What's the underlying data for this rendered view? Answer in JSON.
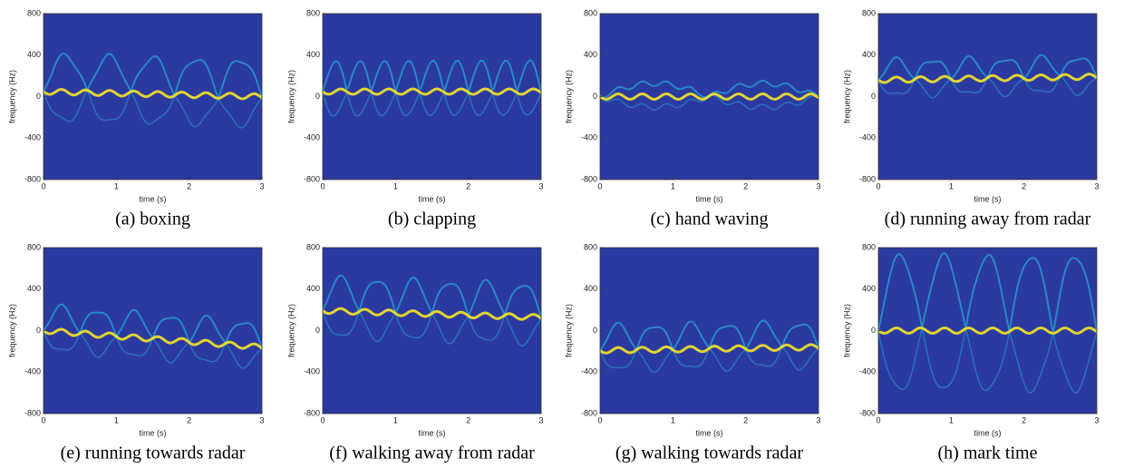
{
  "chart_data": [
    {
      "type": "spectrogram",
      "caption": "(a) boxing",
      "xlabel": "time (s)",
      "ylabel": "frequency (Hz)",
      "xlim": [
        0,
        3
      ],
      "ylim": [
        -800,
        800
      ],
      "xticks": [
        0,
        1,
        2,
        3
      ],
      "yticks": [
        -800,
        -400,
        0,
        400,
        800
      ]
    },
    {
      "type": "spectrogram",
      "caption": "(b) clapping",
      "xlabel": "time (s)",
      "ylabel": "frequency (Hz)",
      "xlim": [
        0,
        3
      ],
      "ylim": [
        -800,
        800
      ],
      "xticks": [
        0,
        1,
        2,
        3
      ],
      "yticks": [
        -800,
        -400,
        0,
        400,
        800
      ]
    },
    {
      "type": "spectrogram",
      "caption": "(c) hand waving",
      "xlabel": "time (s)",
      "ylabel": "frequency (Hz)",
      "xlim": [
        0,
        3
      ],
      "ylim": [
        -800,
        800
      ],
      "xticks": [
        0,
        1,
        2,
        3
      ],
      "yticks": [
        -800,
        -400,
        0,
        400,
        800
      ]
    },
    {
      "type": "spectrogram",
      "caption": "(d) running away from radar",
      "xlabel": "time (s)",
      "ylabel": "frequency (Hz)",
      "xlim": [
        0,
        3
      ],
      "ylim": [
        -800,
        800
      ],
      "xticks": [
        0,
        1,
        2,
        3
      ],
      "yticks": [
        -800,
        -400,
        0,
        400,
        800
      ]
    },
    {
      "type": "spectrogram",
      "caption": "(e) running towards radar",
      "xlabel": "time (s)",
      "ylabel": "frequency (Hz)",
      "xlim": [
        0,
        3
      ],
      "ylim": [
        -800,
        800
      ],
      "xticks": [
        0,
        1,
        2,
        3
      ],
      "yticks": [
        -800,
        -400,
        0,
        400,
        800
      ]
    },
    {
      "type": "spectrogram",
      "caption": "(f) walking away from radar",
      "xlabel": "time (s)",
      "ylabel": "frequency (Hz)",
      "xlim": [
        0,
        3
      ],
      "ylim": [
        -800,
        800
      ],
      "xticks": [
        0,
        1,
        2,
        3
      ],
      "yticks": [
        -800,
        -400,
        0,
        400,
        800
      ]
    },
    {
      "type": "spectrogram",
      "caption": "(g) walking towards radar",
      "xlabel": "time (s)",
      "ylabel": "frequency (Hz)",
      "xlim": [
        0,
        3
      ],
      "ylim": [
        -800,
        800
      ],
      "xticks": [
        0,
        1,
        2,
        3
      ],
      "yticks": [
        -800,
        -400,
        0,
        400,
        800
      ]
    },
    {
      "type": "spectrogram",
      "caption": "(h) mark time",
      "xlabel": "time (s)",
      "ylabel": "frequency (Hz)",
      "xlim": [
        0,
        3
      ],
      "ylim": [
        -800,
        800
      ],
      "xticks": [
        0,
        1,
        2,
        3
      ],
      "yticks": [
        -800,
        -400,
        0,
        400,
        800
      ]
    }
  ]
}
